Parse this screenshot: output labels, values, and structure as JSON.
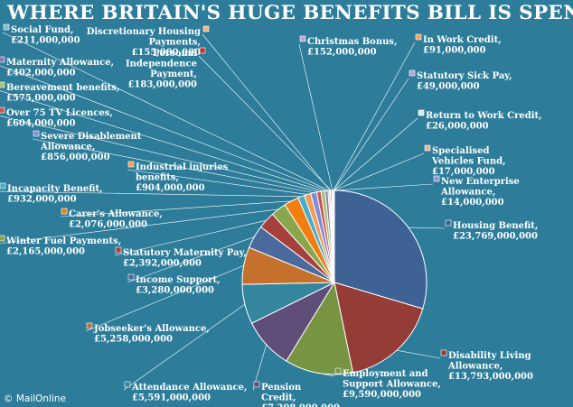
{
  "title": "WHERE BRITAIN'S HUGE BENEFITS BILL IS SPENT",
  "credit": "© MailOnline",
  "colors": {
    "background": "#2d7d9a",
    "text": "#ffffff"
  },
  "chart_data": {
    "type": "pie",
    "title": "WHERE BRITAIN'S HUGE BENEFITS BILL IS SPENT",
    "slices": [
      {
        "label": "Housing Benefit",
        "value_label": "£23,769,000,000",
        "value": 23769000000,
        "color": "#3e6294"
      },
      {
        "label": "Disability Living Allowance",
        "value_label": "£13,793,000,000",
        "value": 13793000000,
        "color": "#943d37"
      },
      {
        "label": "Employment and Support Allowance",
        "value_label": "£9,590,000,000",
        "value": 9590000000,
        "color": "#779442"
      },
      {
        "label": "Pension Credit",
        "value_label": "£7,208,000,000",
        "value": 7208000000,
        "color": "#5f4e7a"
      },
      {
        "label": "Attendance Allowance",
        "value_label": "£5,591,000,000",
        "value": 5591000000,
        "color": "#34869e"
      },
      {
        "label": "Jobseeker's Allowance",
        "value_label": "£5,258,000,000",
        "value": 5258000000,
        "color": "#c5702d"
      },
      {
        "label": "Income Support",
        "value_label": "£3,280,000,000",
        "value": 3280000000,
        "color": "#4a6a9e"
      },
      {
        "label": "Statutory Maternity Pay",
        "value_label": "£2,392,000,000",
        "value": 2392000000,
        "color": "#a6403d"
      },
      {
        "label": "Winter Fuel Payments",
        "value_label": "£2,165,000,000",
        "value": 2165000000,
        "color": "#8aa64c"
      },
      {
        "label": "Carer's Allowance",
        "value_label": "£2,076,000,000",
        "value": 2076000000,
        "color": "#f07e10"
      },
      {
        "label": "Incapacity Benefit",
        "value_label": "£932,000,000",
        "value": 932000000,
        "color": "#4aaccc"
      },
      {
        "label": "Industrial injuries benefits",
        "value_label": "£904,000,000",
        "value": 904000000,
        "color": "#f59a54"
      },
      {
        "label": "Severe Disablement Allowance",
        "value_label": "£856,000,000",
        "value": 856000000,
        "color": "#7f8ed6"
      },
      {
        "label": "Over 75 TV Licences",
        "value_label": "£604,000,000",
        "value": 604000000,
        "color": "#c85652"
      },
      {
        "label": "Bereavement benefits",
        "value_label": "£575,000,000",
        "value": 575000000,
        "color": "#a8c26d"
      },
      {
        "label": "Maternity Allowance",
        "value_label": "£402,000,000",
        "value": 402000000,
        "color": "#8d78b4"
      },
      {
        "label": "Social Fund",
        "value_label": "£211,000,000",
        "value": 211000000,
        "color": "#7fbbd3"
      },
      {
        "label": "Discretionary Housing Payments",
        "value_label": "£155,000,000",
        "value": 155000000,
        "color": "#f7b27a"
      },
      {
        "label": "Personal Independence Payment",
        "value_label": "£183,000,000",
        "value": 183000000,
        "color": "#c0392b"
      },
      {
        "label": "Christmas Bonus",
        "value_label": "£152,000,000",
        "value": 152000000,
        "color": "#b7a6d6"
      },
      {
        "label": "In Work Credit",
        "value_label": "£91,000,000",
        "value": 91000000,
        "color": "#f2a65a"
      },
      {
        "label": "Statutory Sick Pay",
        "value_label": "£49,000,000",
        "value": 49000000,
        "color": "#b6a6cf"
      },
      {
        "label": "Return to Work Credit",
        "value_label": "£26,000,000",
        "value": 26000000,
        "color": "#dfe9f2"
      },
      {
        "label": "Specialised Vehicles Fund",
        "value_label": "£17,000,000",
        "value": 17000000,
        "color": "#e8b39a"
      },
      {
        "label": "New Enterprise Allowance",
        "value_label": "£14,000,000",
        "value": 14000000,
        "color": "#8c9ad8"
      }
    ]
  }
}
